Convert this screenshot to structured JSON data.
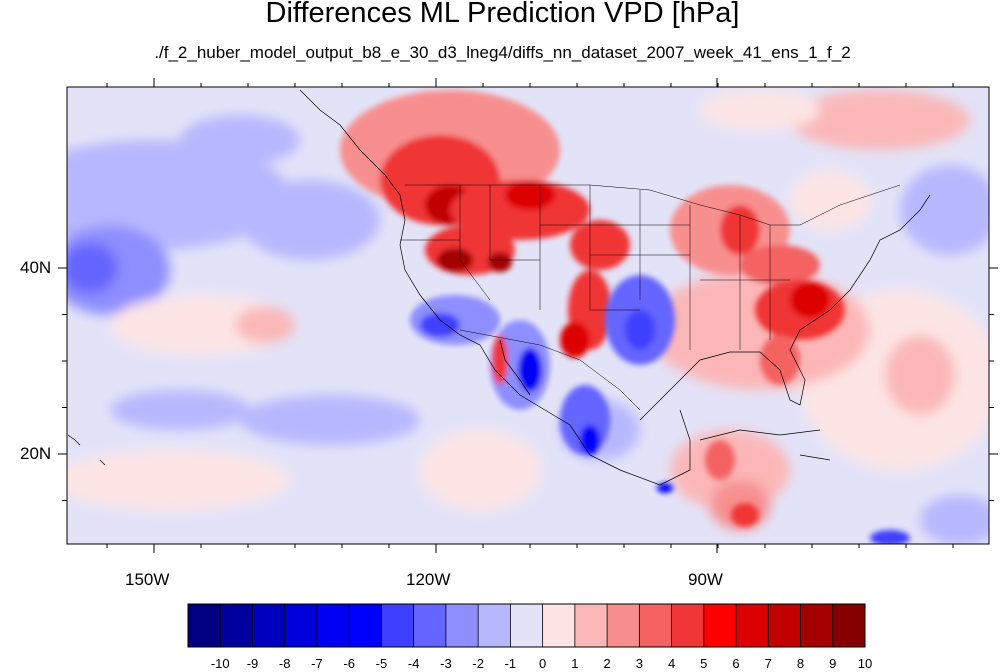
{
  "title": "Differences ML Prediction VPD [hPa]",
  "subtitle": "./f_2_huber_model_output_b8_e_30_d3_lneg4/diffs_nn_dataset_2007_week_41_ens_1_f_2",
  "map": {
    "projection": "cylindrical equidistant",
    "lon_range": [
      -160,
      -62
    ],
    "lat_range": [
      10,
      59
    ],
    "x_tick_labels": [
      "150W",
      "120W",
      "90W"
    ],
    "y_tick_labels": [
      "40N",
      "20N"
    ],
    "regions_shown": [
      "North Pacific Ocean",
      "Contiguous United States",
      "Mexico",
      "Hawaii",
      "Caribbean"
    ],
    "notable_features": [
      {
        "region": "Pacific Northwest and northern Rockies",
        "sign": "positive",
        "approx_max": 9
      },
      {
        "region": "Southern Rockies / western Texas",
        "sign": "positive",
        "approx_max": 7
      },
      {
        "region": "Mid-Atlantic and Southeast US",
        "sign": "positive",
        "approx_max": 7
      },
      {
        "region": "Great Lakes",
        "sign": "positive",
        "approx_max": 6
      },
      {
        "region": "Baja California and western Mexico",
        "sign": "negative",
        "approx_min": -7
      },
      {
        "region": "Texas / Oklahoma",
        "sign": "negative",
        "approx_min": -5
      },
      {
        "region": "Central North Pacific near 40N",
        "sign": "negative",
        "approx_min": -5
      }
    ]
  },
  "colorbar": {
    "labels": [
      "-10",
      "-9",
      "-8",
      "-7",
      "-6",
      "-5",
      "-4",
      "-3",
      "-2",
      "-1",
      "0",
      "1",
      "2",
      "3",
      "4",
      "5",
      "6",
      "7",
      "8",
      "9",
      "10"
    ],
    "colors": [
      "#000080",
      "#00009e",
      "#0000be",
      "#0000dc",
      "#0000f2",
      "#0000ff",
      "#3f3fff",
      "#6565ff",
      "#8e8eff",
      "#b7b7ff",
      "#e3e3f8",
      "#fde5e5",
      "#fbb7b7",
      "#f88f8f",
      "#f46262",
      "#f03636",
      "#ff0000",
      "#dd0000",
      "#c20000",
      "#a50000",
      "#860000"
    ]
  }
}
